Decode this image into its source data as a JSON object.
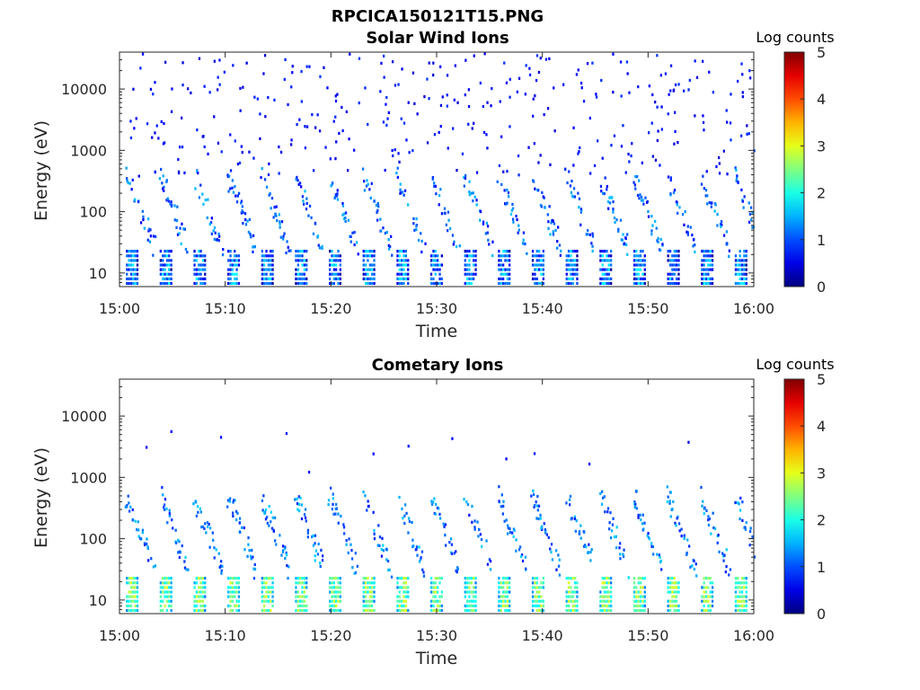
{
  "figure_title": "RPCICA150121T15.PNG",
  "chart_data": [
    {
      "type": "heatmap",
      "title": "Solar Wind Ions",
      "xlabel": "Time",
      "ylabel": "Energy (eV)",
      "x_ticks": [
        "15:00",
        "15:10",
        "15:20",
        "15:30",
        "15:40",
        "15:50",
        "16:00"
      ],
      "xlim": [
        "15:00",
        "16:00"
      ],
      "y_scale": "log",
      "ylim": [
        6,
        40000
      ],
      "y_ticks": [
        {
          "value": 10,
          "label": "10"
        },
        {
          "value": 100,
          "label": "100"
        },
        {
          "value": 1000,
          "label": "1000"
        },
        {
          "value": 10000,
          "label": "10000"
        }
      ],
      "colorbar": {
        "label": "Log counts",
        "range": [
          0,
          5
        ],
        "ticks": [
          "0",
          "1",
          "2",
          "3",
          "4",
          "5"
        ],
        "colormap": "jet"
      },
      "sweep_start_minutes": [
        0.6,
        3.8,
        7.0,
        10.2,
        13.4,
        16.6,
        19.8,
        23.0,
        26.2,
        29.4,
        32.6,
        35.8,
        39.0,
        42.2,
        45.4,
        48.6,
        51.8,
        55.0,
        58.2
      ],
      "band_low": {
        "energy_range": [
          6,
          28
        ],
        "level": 1.3
      },
      "band_mid": {
        "energy_range": [
          60,
          400
        ],
        "level": 1.1
      },
      "band_high": {
        "energy_range": [
          400,
          40000
        ],
        "level": 0.4
      }
    },
    {
      "type": "heatmap",
      "title": "Cometary Ions",
      "xlabel": "Time",
      "ylabel": "Energy (eV)",
      "x_ticks": [
        "15:00",
        "15:10",
        "15:20",
        "15:30",
        "15:40",
        "15:50",
        "16:00"
      ],
      "xlim": [
        "15:00",
        "16:00"
      ],
      "y_scale": "log",
      "ylim": [
        6,
        40000
      ],
      "y_ticks": [
        {
          "value": 10,
          "label": "10"
        },
        {
          "value": 100,
          "label": "100"
        },
        {
          "value": 1000,
          "label": "1000"
        },
        {
          "value": 10000,
          "label": "10000"
        }
      ],
      "colorbar": {
        "label": "Log counts",
        "range": [
          0,
          5
        ],
        "ticks": [
          "0",
          "1",
          "2",
          "3",
          "4",
          "5"
        ],
        "colormap": "jet"
      },
      "sweep_start_minutes": [
        0.6,
        3.8,
        7.0,
        10.2,
        13.4,
        16.6,
        19.8,
        23.0,
        26.2,
        29.4,
        32.6,
        35.8,
        39.0,
        42.2,
        45.4,
        48.6,
        51.8,
        55.0,
        58.2
      ],
      "band_low": {
        "energy_range": [
          6,
          28
        ],
        "level": 2.4
      },
      "band_mid": {
        "energy_range": [
          50,
          500
        ],
        "level": 1.2
      },
      "band_high": {
        "energy_range": [
          1000,
          6000
        ],
        "level": 0.3
      }
    }
  ]
}
